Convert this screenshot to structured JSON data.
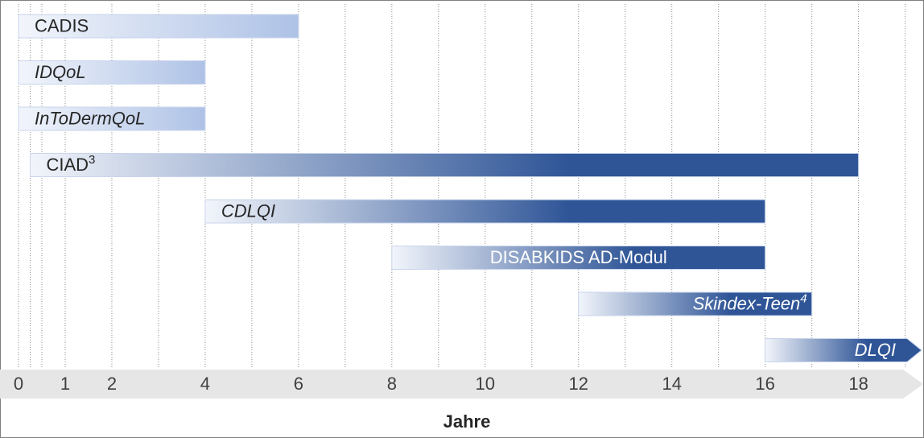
{
  "chart_data": {
    "type": "range_bar",
    "xlabel": "Jahre",
    "xlim": [
      0,
      19.3
    ],
    "xticks": [
      0,
      1,
      2,
      4,
      6,
      8,
      10,
      12,
      14,
      16,
      18
    ],
    "xgrid": [
      0,
      0.25,
      0.5,
      1,
      2,
      3,
      4,
      5,
      6,
      7,
      8,
      9,
      10,
      11,
      12,
      13,
      14,
      15,
      16,
      17,
      18,
      19
    ],
    "bars": [
      {
        "label": "CADIS",
        "start": 0,
        "end": 6,
        "italic": false,
        "align": "left",
        "color": "#aec2e6",
        "text_color": "#262626"
      },
      {
        "label": "IDQoL",
        "start": 0,
        "end": 4,
        "italic": true,
        "align": "left",
        "color": "#aec2e6",
        "text_color": "#262626"
      },
      {
        "label": "InToDermQoL",
        "start": 0,
        "end": 4,
        "italic": true,
        "align": "left",
        "color": "#aec2e6",
        "text_color": "#262626"
      },
      {
        "label": "CIAD",
        "sup": "3",
        "start": 0.25,
        "end": 18,
        "italic": false,
        "align": "left",
        "color": "#2f5597",
        "text_color": "#262626"
      },
      {
        "label": "CDLQI",
        "start": 4,
        "end": 16,
        "italic": true,
        "align": "left",
        "color": "#2f5597",
        "text_color": "#262626"
      },
      {
        "label": "DISABKIDS AD-Modul",
        "start": 8,
        "end": 16,
        "italic": false,
        "align": "middle",
        "color": "#2f5597",
        "text_color": "#ffffff"
      },
      {
        "label": "Skindex-Teen",
        "sup": "4",
        "start": 12,
        "end": 17,
        "italic": true,
        "align": "right",
        "color": "#2f5597",
        "text_color": "#ffffff"
      },
      {
        "label": "DLQI",
        "start": 16,
        "end": null,
        "italic": true,
        "align": "right",
        "color": "#2f5597",
        "text_color": "#ffffff"
      }
    ]
  }
}
